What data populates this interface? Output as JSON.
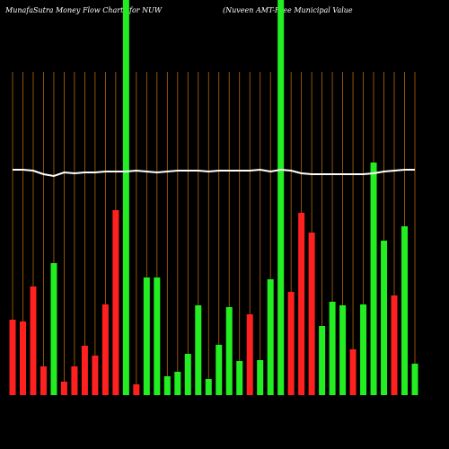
{
  "chart_data": {
    "type": "bar",
    "title": "MunafaSutra  Money Flow  Charts for NUW",
    "subtitle": "(Nuveen  AMT-Free  Municipal Value",
    "categories": [
      null,
      null,
      null,
      null,
      null,
      null,
      null,
      null,
      null,
      null,
      null,
      null,
      null,
      null,
      null,
      null,
      null,
      null,
      null,
      null,
      null,
      null,
      null,
      null,
      null,
      null,
      null,
      null,
      null,
      null,
      null,
      null,
      null,
      null,
      null,
      null,
      null,
      null,
      null,
      null
    ],
    "values": [
      84,
      82,
      121,
      32,
      147,
      15,
      32,
      55,
      44,
      101,
      206,
      440,
      12,
      131,
      131,
      21,
      26,
      46,
      100,
      18,
      56,
      98,
      38,
      90,
      39,
      129,
      440,
      115,
      203,
      181,
      77,
      104,
      100,
      51,
      101,
      259,
      172,
      111,
      188,
      35
    ],
    "colors": [
      "#ff2020",
      "#ff2020",
      "#ff2020",
      "#ff2020",
      "#22ee22",
      "#ff2020",
      "#ff2020",
      "#ff2020",
      "#ff2020",
      "#ff2020",
      "#ff2020",
      "#22ee22",
      "#ff2020",
      "#22ee22",
      "#22ee22",
      "#22ee22",
      "#22ee22",
      "#22ee22",
      "#22ee22",
      "#22ee22",
      "#22ee22",
      "#22ee22",
      "#22ee22",
      "#ff2020",
      "#22ee22",
      "#22ee22",
      "#22ee22",
      "#ff2020",
      "#ff2020",
      "#ff2020",
      "#22ee22",
      "#22ee22",
      "#22ee22",
      "#ff2020",
      "#22ee22",
      "#22ee22",
      "#22ee22",
      "#ff2020",
      "#22ee22",
      "#22ee22"
    ],
    "line": {
      "color": "#ffffff",
      "values": [
        251,
        251,
        250,
        246,
        244,
        248,
        247,
        248,
        248,
        249,
        249,
        249,
        250,
        249,
        248,
        249,
        250,
        250,
        250,
        249,
        250,
        250,
        250,
        250,
        251,
        249,
        251,
        250,
        247,
        246,
        246,
        246,
        246,
        246,
        246,
        247,
        249,
        250,
        251,
        251
      ]
    },
    "ylim": [
      0,
      440
    ],
    "grid": true,
    "grid_color": "#b8660b"
  }
}
